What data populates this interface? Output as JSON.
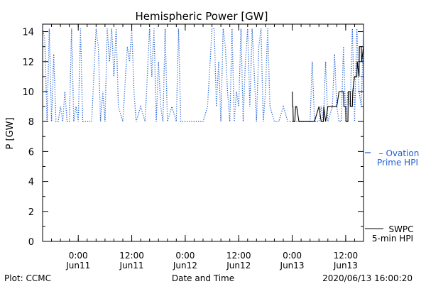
{
  "chart_data": {
    "type": "line",
    "title": "Hemispheric Power [GW]",
    "ylabel": "P [GW]",
    "xlabel": "Date and Time",
    "ylim": [
      0,
      14.5
    ],
    "yticks": [
      0,
      2,
      4,
      6,
      8,
      10,
      12,
      14
    ],
    "xlim": [
      "2020-06-10T16:00",
      "2020-06-13T16:00"
    ],
    "xticks": [
      {
        "t": "2020-06-11T00:00",
        "time": "0:00",
        "date": "Jun11"
      },
      {
        "t": "2020-06-11T12:00",
        "time": "12:00",
        "date": "Jun11"
      },
      {
        "t": "2020-06-12T00:00",
        "time": "0:00",
        "date": "Jun12"
      },
      {
        "t": "2020-06-12T12:00",
        "time": "12:00",
        "date": "Jun12"
      },
      {
        "t": "2020-06-13T00:00",
        "time": "0:00",
        "date": "Jun13"
      },
      {
        "t": "2020-06-13T12:00",
        "time": "12:00",
        "date": "Jun13"
      }
    ],
    "series": [
      {
        "name": "Ovation Prime HPI",
        "legend_line1": "Ovation",
        "legend_line2": "Prime HPI",
        "color": "#1f5fd6",
        "style": "dotted",
        "x": [
          "2020-06-10T16:00",
          "2020-06-10T16:30",
          "2020-06-10T17:00",
          "2020-06-10T17:30",
          "2020-06-10T18:00",
          "2020-06-10T18:30",
          "2020-06-10T19:00",
          "2020-06-10T19:30",
          "2020-06-10T20:00",
          "2020-06-10T20:30",
          "2020-06-10T21:00",
          "2020-06-10T21:30",
          "2020-06-10T22:00",
          "2020-06-10T22:30",
          "2020-06-10T23:00",
          "2020-06-10T23:30",
          "2020-06-11T00:00",
          "2020-06-11T00:30",
          "2020-06-11T01:00",
          "2020-06-11T01:30",
          "2020-06-11T02:00",
          "2020-06-11T03:00",
          "2020-06-11T04:00",
          "2020-06-11T04:30",
          "2020-06-11T05:00",
          "2020-06-11T05:30",
          "2020-06-11T06:00",
          "2020-06-11T06:30",
          "2020-06-11T07:00",
          "2020-06-11T07:30",
          "2020-06-11T08:00",
          "2020-06-11T08:30",
          "2020-06-11T09:00",
          "2020-06-11T10:00",
          "2020-06-11T11:00",
          "2020-06-11T11:30",
          "2020-06-11T12:00",
          "2020-06-11T12:30",
          "2020-06-11T13:00",
          "2020-06-11T14:00",
          "2020-06-11T15:00",
          "2020-06-11T16:00",
          "2020-06-11T16:30",
          "2020-06-11T17:00",
          "2020-06-11T17:30",
          "2020-06-11T18:00",
          "2020-06-11T18:30",
          "2020-06-11T19:00",
          "2020-06-11T19:30",
          "2020-06-11T20:00",
          "2020-06-11T21:00",
          "2020-06-11T22:00",
          "2020-06-11T22:30",
          "2020-06-11T23:00",
          "2020-06-12T00:00",
          "2020-06-12T01:00",
          "2020-06-12T02:00",
          "2020-06-12T03:00",
          "2020-06-12T04:00",
          "2020-06-12T05:00",
          "2020-06-12T06:00",
          "2020-06-12T06:30",
          "2020-06-12T07:00",
          "2020-06-12T07:30",
          "2020-06-12T08:00",
          "2020-06-12T08:30",
          "2020-06-12T09:00",
          "2020-06-12T09:30",
          "2020-06-12T10:00",
          "2020-06-12T10:30",
          "2020-06-12T11:00",
          "2020-06-12T11:30",
          "2020-06-12T12:00",
          "2020-06-12T12:30",
          "2020-06-12T13:00",
          "2020-06-12T13:30",
          "2020-06-12T14:00",
          "2020-06-12T14:30",
          "2020-06-12T15:00",
          "2020-06-12T16:00",
          "2020-06-12T16:30",
          "2020-06-12T17:00",
          "2020-06-12T17:30",
          "2020-06-12T18:00",
          "2020-06-12T18:30",
          "2020-06-12T19:00",
          "2020-06-12T20:00",
          "2020-06-12T21:00",
          "2020-06-12T22:00",
          "2020-06-12T23:00",
          "2020-06-13T00:00",
          "2020-06-13T01:00",
          "2020-06-13T02:00",
          "2020-06-13T03:00",
          "2020-06-13T04:00",
          "2020-06-13T04:30",
          "2020-06-13T05:00",
          "2020-06-13T06:00",
          "2020-06-13T06:30",
          "2020-06-13T07:00",
          "2020-06-13T07:30",
          "2020-06-13T08:00",
          "2020-06-13T09:00",
          "2020-06-13T09:30",
          "2020-06-13T10:00",
          "2020-06-13T10:30",
          "2020-06-13T11:00",
          "2020-06-13T11:30",
          "2020-06-13T12:00",
          "2020-06-13T12:30",
          "2020-06-13T13:00",
          "2020-06-13T13:30",
          "2020-06-13T14:00",
          "2020-06-13T14:30",
          "2020-06-13T15:00",
          "2020-06-13T15:30",
          "2020-06-13T16:00"
        ],
        "y": [
          14.2,
          13.5,
          8.0,
          14.2,
          8.0,
          12.5,
          8.0,
          8.0,
          9.0,
          8.0,
          10.0,
          8.0,
          8.0,
          14.2,
          8.0,
          9.0,
          8.0,
          14.2,
          8.0,
          8.0,
          8.0,
          8.0,
          14.2,
          13.0,
          8.0,
          10.0,
          8.0,
          14.2,
          12.0,
          14.2,
          11.0,
          14.2,
          9.0,
          8.0,
          13.0,
          12.0,
          14.2,
          10.0,
          8.0,
          9.0,
          8.0,
          14.2,
          11.0,
          14.2,
          8.0,
          12.0,
          9.0,
          8.0,
          14.2,
          8.0,
          9.0,
          8.0,
          14.2,
          8.0,
          8.0,
          8.0,
          8.0,
          8.0,
          8.0,
          9.0,
          14.2,
          14.2,
          9.0,
          12.0,
          8.0,
          14.2,
          13.0,
          10.0,
          8.0,
          14.2,
          8.0,
          10.0,
          9.0,
          14.2,
          8.0,
          12.0,
          14.2,
          9.0,
          14.2,
          8.0,
          13.0,
          14.2,
          8.0,
          10.0,
          14.2,
          9.0,
          8.0,
          8.0,
          9.0,
          8.0,
          8.0,
          8.0,
          8.0,
          8.0,
          8.0,
          12.0,
          8.0,
          8.0,
          9.0,
          8.0,
          12.0,
          8.0,
          9.0,
          12.5,
          9.0,
          8.0,
          8.0,
          13.0,
          8.0,
          10.0,
          9.0,
          14.2,
          8.0,
          14.2,
          10.0,
          9.0,
          14.2
        ]
      },
      {
        "name": "SWPC 5-min HPI",
        "legend_line1": "SWPC",
        "legend_line2": "5-min HPI",
        "color": "#000000",
        "style": "solid",
        "x": [
          "2020-06-13T00:00",
          "2020-06-13T00:05",
          "2020-06-13T00:10",
          "2020-06-13T00:15",
          "2020-06-13T00:30",
          "2020-06-13T00:35",
          "2020-06-13T00:45",
          "2020-06-13T01:00",
          "2020-06-13T01:30",
          "2020-06-13T02:00",
          "2020-06-13T02:40",
          "2020-06-13T03:00",
          "2020-06-13T04:00",
          "2020-06-13T05:00",
          "2020-06-13T06:00",
          "2020-06-13T06:30",
          "2020-06-13T06:35",
          "2020-06-13T07:00",
          "2020-06-13T07:05",
          "2020-06-13T07:30",
          "2020-06-13T08:00",
          "2020-06-13T08:05",
          "2020-06-13T09:00",
          "2020-06-13T09:30",
          "2020-06-13T10:00",
          "2020-06-13T10:30",
          "2020-06-13T10:35",
          "2020-06-13T11:00",
          "2020-06-13T11:30",
          "2020-06-13T11:35",
          "2020-06-13T12:00",
          "2020-06-13T12:05",
          "2020-06-13T12:30",
          "2020-06-13T12:35",
          "2020-06-13T13:00",
          "2020-06-13T13:05",
          "2020-06-13T13:30",
          "2020-06-13T13:35",
          "2020-06-13T14:00",
          "2020-06-13T14:30",
          "2020-06-13T14:35",
          "2020-06-13T15:00",
          "2020-06-13T15:05",
          "2020-06-13T15:30",
          "2020-06-13T15:35",
          "2020-06-13T16:00"
        ],
        "y": [
          10.0,
          9.0,
          9.0,
          8.0,
          8.0,
          8.0,
          9.0,
          9.0,
          8.0,
          8.0,
          8.0,
          8.0,
          8.0,
          8.0,
          9.0,
          8.0,
          8.0,
          8.0,
          9.0,
          8.0,
          9.0,
          9.0,
          9.0,
          9.0,
          9.0,
          10.0,
          10.0,
          10.0,
          10.0,
          9.0,
          9.0,
          8.0,
          8.0,
          10.0,
          10.0,
          9.0,
          9.0,
          10.0,
          11.0,
          11.0,
          12.0,
          11.0,
          13.0,
          13.0,
          12.0,
          13.0
        ]
      }
    ],
    "legend_position": "right"
  },
  "footer": {
    "left": "Plot: CCMC",
    "center": "Date and Time",
    "right": "2020/06/13 16:00:20"
  }
}
